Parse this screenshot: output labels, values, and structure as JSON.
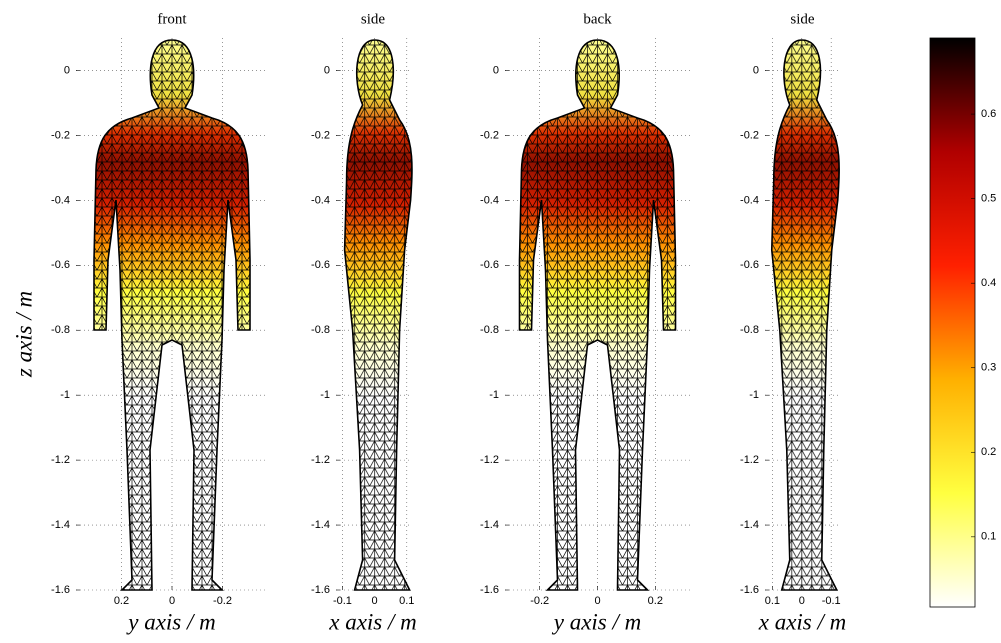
{
  "chart_data": [
    {
      "type": "mesh",
      "title": "front",
      "xlabel": "y axis / m",
      "ylabel": "z axis / m",
      "xlim": [
        0.38,
        -0.38
      ],
      "xticks": [
        0.2,
        0,
        -0.2
      ],
      "ylim": [
        -1.6,
        0.1
      ],
      "yticks": [
        0,
        -0.2,
        -0.4,
        -0.6,
        -0.8,
        -1,
        -1.2,
        -1.4,
        -1.6
      ],
      "grid": true
    },
    {
      "type": "mesh",
      "title": "side",
      "xlabel": "x axis / m",
      "xlim": [
        -0.12,
        0.11
      ],
      "xticks": [
        -0.1,
        0,
        0.1
      ],
      "ylim": [
        -1.6,
        0.1
      ],
      "yticks": [
        0,
        -0.2,
        -0.4,
        -0.6,
        -0.8,
        -1,
        -1.2,
        -1.4,
        -1.6
      ],
      "grid": true
    },
    {
      "type": "mesh",
      "title": "back",
      "xlabel": "y axis / m",
      "xlim": [
        -0.32,
        0.32
      ],
      "xticks": [
        -0.2,
        0,
        0.2
      ],
      "ylim": [
        -1.6,
        0.1
      ],
      "yticks": [
        0,
        -0.2,
        -0.4,
        -0.6,
        -0.8,
        -1,
        -1.2,
        -1.4,
        -1.6
      ],
      "grid": true
    },
    {
      "type": "mesh",
      "title": "side",
      "xlabel": "x axis / m",
      "xlim": [
        0.125,
        -0.13
      ],
      "xticks": [
        0.1,
        0,
        -0.1
      ],
      "ylim": [
        -1.6,
        0.1
      ],
      "yticks": [
        0,
        -0.2,
        -0.4,
        -0.6,
        -0.8,
        -1,
        -1.2,
        -1.4,
        -1.6
      ],
      "grid": true
    },
    {
      "type": "colorbar",
      "ylim": [
        0.017,
        0.69
      ],
      "yticks": [
        0.1,
        0.2,
        0.3,
        0.4,
        0.5,
        0.6
      ],
      "colormap": [
        "#ffffff",
        "#ffff40",
        "#ffb000",
        "#ff2000",
        "#b00000",
        "#000000"
      ]
    }
  ]
}
